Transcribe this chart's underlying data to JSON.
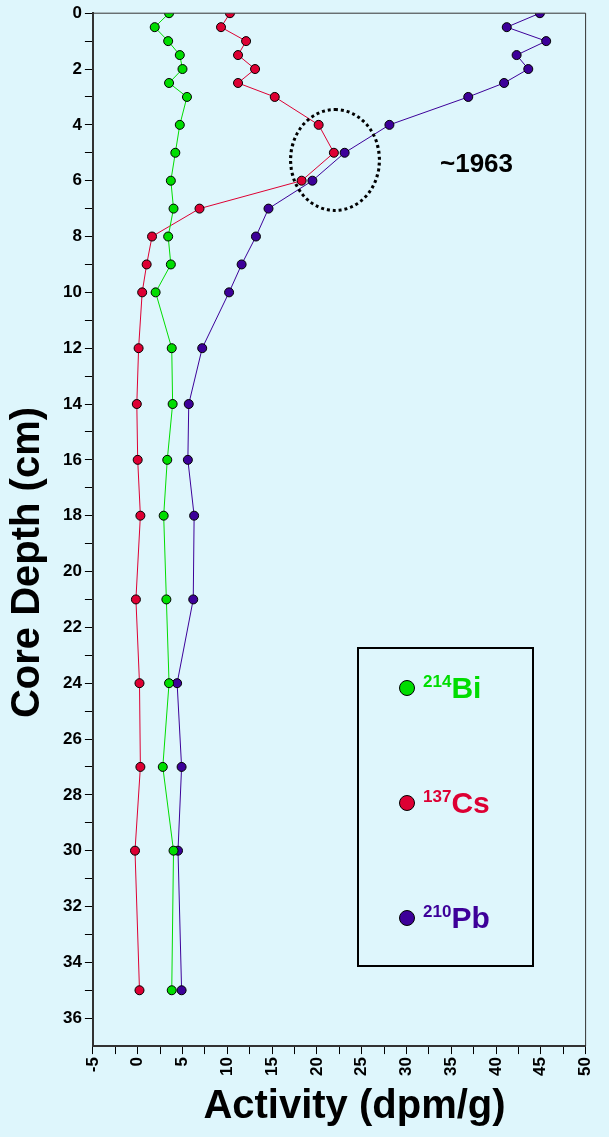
{
  "chart_data": {
    "type": "line",
    "xlabel": "Activity (dpm/g)",
    "ylabel": "Core Depth (cm)",
    "annotations": [
      "~1963"
    ],
    "xlim": [
      -5,
      50
    ],
    "xticks": [
      -5,
      {
        "value": -2.5,
        "label": null
      },
      0,
      {
        "value": 2.5,
        "label": null
      },
      5,
      {
        "value": 7.5,
        "label": null
      },
      10,
      {
        "value": 12.5,
        "label": null
      },
      15,
      {
        "value": 17.5,
        "label": null
      },
      20,
      {
        "value": 22.5,
        "label": null
      },
      25,
      {
        "value": 27.5,
        "label": null
      },
      30,
      {
        "value": 32.5,
        "label": null
      },
      35,
      {
        "value": 37.5,
        "label": null
      },
      40,
      {
        "value": 42.5,
        "label": null
      },
      45,
      {
        "value": 47.5,
        "label": null
      },
      50
    ],
    "ylim": [
      37,
      0
    ],
    "yticks": [
      0,
      {
        "value": 1,
        "label": null
      },
      2,
      {
        "value": 3,
        "label": null
      },
      4,
      {
        "value": 5,
        "label": null
      },
      6,
      {
        "value": 7,
        "label": null
      },
      8,
      {
        "value": 9,
        "label": null
      },
      10,
      {
        "value": 11,
        "label": null
      },
      12,
      {
        "value": 13,
        "label": null
      },
      14,
      {
        "value": 15,
        "label": null
      },
      16,
      {
        "value": 17,
        "label": null
      },
      18,
      {
        "value": 19,
        "label": null
      },
      20,
      {
        "value": 21,
        "label": null
      },
      22,
      {
        "value": 23,
        "label": null
      },
      24,
      {
        "value": 25,
        "label": null
      },
      26,
      {
        "value": 27,
        "label": null
      },
      28,
      {
        "value": 29,
        "label": null
      },
      30,
      {
        "value": 31,
        "label": null
      },
      32,
      {
        "value": 33,
        "label": null
      },
      34,
      {
        "value": 35,
        "label": null
      },
      36
    ],
    "grid": false,
    "legend": "bottom right",
    "marker": "circle",
    "line_style": "solid",
    "series": [
      {
        "name": "$^{214}$Bi",
        "color": "#00dd00",
        "x": [
          3.5,
          1.9,
          3.4,
          4.7,
          5.0,
          3.5,
          5.5,
          4.7,
          4.2,
          3.7,
          4.0,
          3.4,
          3.7,
          2.0,
          3.8,
          3.9,
          3.3,
          2.9,
          3.2,
          3.5,
          2.8,
          4.0,
          3.8
        ],
        "values": [
          0,
          0.5,
          1,
          1.5,
          2,
          2.5,
          3,
          4,
          5,
          6,
          7,
          8,
          9,
          10,
          12,
          14,
          16,
          18,
          21,
          24,
          27,
          30,
          35
        ]
      },
      {
        "name": "$^{137}$Cs",
        "color": "#dd0033",
        "x": [
          10.3,
          9.3,
          12.1,
          11.2,
          13.1,
          11.2,
          15.3,
          20.2,
          21.9,
          18.3,
          6.9,
          1.6,
          1.0,
          0.5,
          0.1,
          -0.1,
          0.0,
          0.3,
          -0.2,
          0.2,
          0.3,
          -0.3,
          0.2
        ],
        "values": [
          0,
          0.5,
          1,
          1.5,
          2,
          2.5,
          3,
          4,
          5,
          6,
          7,
          8,
          9,
          10,
          12,
          14,
          16,
          18,
          21,
          24,
          27,
          30,
          35
        ]
      },
      {
        "name": "$^{210}$Pb",
        "color": "#3d0099",
        "x": [
          44.9,
          41.2,
          45.6,
          42.3,
          43.6,
          40.9,
          36.9,
          28.1,
          23.1,
          19.5,
          14.6,
          13.2,
          11.6,
          10.2,
          7.2,
          5.7,
          5.6,
          6.3,
          6.2,
          4.4,
          4.9,
          4.5,
          4.9
        ],
        "values": [
          0,
          0.5,
          1,
          1.5,
          2,
          2.5,
          3,
          4,
          5,
          6,
          7,
          8,
          9,
          10,
          12,
          14,
          16,
          18,
          21,
          24,
          27,
          30,
          35
        ]
      }
    ]
  }
}
